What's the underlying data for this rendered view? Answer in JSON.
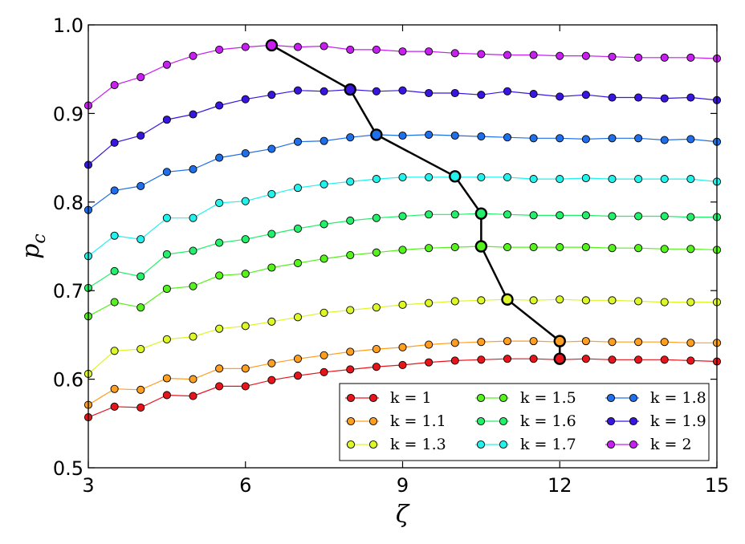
{
  "chart_data": {
    "type": "line",
    "title": "",
    "xlabel": "ζ",
    "ylabel": "p",
    "ylabel_sub": "c",
    "xlim": [
      3,
      15
    ],
    "ylim": [
      0.5,
      1.0
    ],
    "xticks": [
      3,
      6,
      9,
      12,
      15
    ],
    "xtick_labels": [
      "3",
      "6",
      "9",
      "12",
      "15"
    ],
    "yticks": [
      0.5,
      0.6,
      0.7,
      0.8,
      0.9,
      1.0
    ],
    "ytick_labels": [
      "0.5",
      "0.6",
      "0.7",
      "0.8",
      "0.9",
      "1.0"
    ],
    "grid": false,
    "legend": {
      "position": "lower-right",
      "columns": 3
    },
    "x": [
      3,
      3.5,
      4,
      4.5,
      5,
      5.5,
      6,
      6.5,
      7,
      7.5,
      8,
      8.5,
      9,
      9.5,
      10,
      10.5,
      11,
      11.5,
      12,
      12.5,
      13,
      13.5,
      14,
      14.5,
      15
    ],
    "series": [
      {
        "name": "k = 1",
        "color": "#e8141c",
        "values": [
          0.557,
          0.569,
          0.568,
          0.582,
          0.581,
          0.592,
          0.592,
          0.599,
          0.604,
          0.608,
          0.611,
          0.614,
          0.616,
          0.619,
          0.621,
          0.622,
          0.623,
          0.623,
          0.622,
          0.623,
          0.622,
          0.622,
          0.622,
          0.621,
          0.62
        ]
      },
      {
        "name": "k = 1.1",
        "color": "#ff9e1f",
        "values": [
          0.571,
          0.589,
          0.588,
          0.601,
          0.6,
          0.612,
          0.612,
          0.618,
          0.623,
          0.627,
          0.631,
          0.634,
          0.636,
          0.639,
          0.641,
          0.642,
          0.643,
          0.643,
          0.642,
          0.643,
          0.642,
          0.642,
          0.642,
          0.641,
          0.641
        ]
      },
      {
        "name": "k = 1.3",
        "color": "#ddf626",
        "values": [
          0.606,
          0.632,
          0.634,
          0.645,
          0.648,
          0.657,
          0.66,
          0.665,
          0.67,
          0.675,
          0.678,
          0.681,
          0.684,
          0.686,
          0.688,
          0.689,
          0.69,
          0.689,
          0.69,
          0.689,
          0.689,
          0.688,
          0.687,
          0.687,
          0.687
        ]
      },
      {
        "name": "k = 1.5",
        "color": "#55f21c",
        "values": [
          0.671,
          0.687,
          0.681,
          0.702,
          0.705,
          0.717,
          0.719,
          0.726,
          0.731,
          0.736,
          0.74,
          0.743,
          0.746,
          0.748,
          0.749,
          0.75,
          0.749,
          0.749,
          0.749,
          0.749,
          0.748,
          0.748,
          0.747,
          0.747,
          0.746
        ]
      },
      {
        "name": "k = 1.6",
        "color": "#20f06a",
        "values": [
          0.703,
          0.722,
          0.716,
          0.741,
          0.745,
          0.754,
          0.758,
          0.764,
          0.77,
          0.775,
          0.779,
          0.782,
          0.784,
          0.786,
          0.786,
          0.787,
          0.786,
          0.785,
          0.785,
          0.785,
          0.784,
          0.784,
          0.784,
          0.783,
          0.783
        ]
      },
      {
        "name": "k = 1.7",
        "color": "#22f2ec",
        "values": [
          0.739,
          0.762,
          0.758,
          0.782,
          0.782,
          0.799,
          0.801,
          0.809,
          0.816,
          0.82,
          0.823,
          0.826,
          0.828,
          0.828,
          0.828,
          0.828,
          0.828,
          0.826,
          0.826,
          0.827,
          0.826,
          0.826,
          0.826,
          0.826,
          0.823
        ]
      },
      {
        "name": "k = 1.8",
        "color": "#1f6fea",
        "values": [
          0.791,
          0.813,
          0.818,
          0.834,
          0.837,
          0.85,
          0.855,
          0.86,
          0.868,
          0.869,
          0.873,
          0.876,
          0.875,
          0.876,
          0.875,
          0.874,
          0.873,
          0.872,
          0.872,
          0.871,
          0.872,
          0.872,
          0.87,
          0.871,
          0.868
        ]
      },
      {
        "name": "k = 1.9",
        "color": "#3a15e0",
        "values": [
          0.842,
          0.867,
          0.875,
          0.893,
          0.899,
          0.909,
          0.916,
          0.921,
          0.926,
          0.925,
          0.927,
          0.925,
          0.926,
          0.923,
          0.923,
          0.921,
          0.925,
          0.922,
          0.919,
          0.921,
          0.918,
          0.918,
          0.917,
          0.918,
          0.915
        ]
      },
      {
        "name": "k = 2",
        "color": "#c61ff0",
        "values": [
          0.909,
          0.932,
          0.941,
          0.955,
          0.965,
          0.972,
          0.975,
          0.977,
          0.975,
          0.976,
          0.972,
          0.972,
          0.97,
          0.97,
          0.968,
          0.967,
          0.966,
          0.966,
          0.965,
          0.965,
          0.964,
          0.963,
          0.963,
          0.963,
          0.962
        ]
      }
    ],
    "critical_line": {
      "color": "#000000",
      "points": [
        {
          "x": 12,
          "y": 0.623,
          "color": "#e8141c"
        },
        {
          "x": 12,
          "y": 0.643,
          "color": "#ff9e1f"
        },
        {
          "x": 11,
          "y": 0.69,
          "color": "#ddf626"
        },
        {
          "x": 10.5,
          "y": 0.75,
          "color": "#55f21c"
        },
        {
          "x": 10.5,
          "y": 0.787,
          "color": "#20f06a"
        },
        {
          "x": 10,
          "y": 0.829,
          "color": "#22f2ec"
        },
        {
          "x": 8.5,
          "y": 0.876,
          "color": "#1f6fea"
        },
        {
          "x": 8,
          "y": 0.927,
          "color": "#3a15e0"
        },
        {
          "x": 6.5,
          "y": 0.977,
          "color": "#c61ff0"
        }
      ]
    }
  }
}
